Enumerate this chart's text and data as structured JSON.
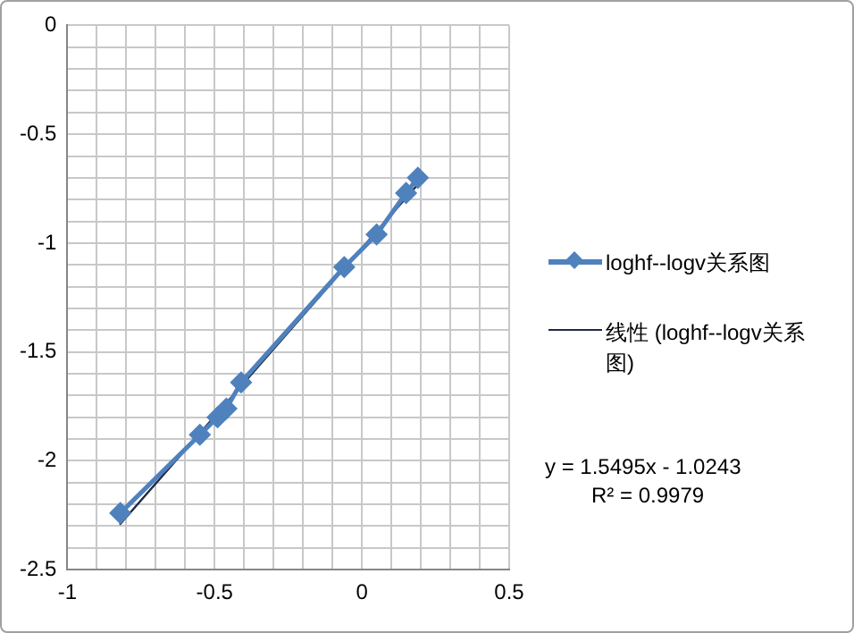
{
  "chart_data": {
    "type": "line",
    "legend": "right",
    "grid": true,
    "marker": "diamond",
    "xlim": [
      -1,
      0.5
    ],
    "ylim": [
      -2.5,
      0
    ],
    "xticks": [
      -1,
      {
        "value": -0.9,
        "label": null
      },
      {
        "value": -0.8,
        "label": null
      },
      {
        "value": -0.7,
        "label": null
      },
      {
        "value": -0.6,
        "label": null
      },
      -0.5,
      {
        "value": -0.4,
        "label": null
      },
      {
        "value": -0.3,
        "label": null
      },
      {
        "value": -0.2,
        "label": null
      },
      {
        "value": -0.1,
        "label": null
      },
      0,
      {
        "value": 0.1,
        "label": null
      },
      {
        "value": 0.2,
        "label": null
      },
      {
        "value": 0.3,
        "label": null
      },
      {
        "value": 0.4,
        "label": null
      },
      0.5
    ],
    "yticks": [
      -2.5,
      {
        "value": -2.4,
        "label": null
      },
      {
        "value": -2.3,
        "label": null
      },
      {
        "value": -2.2,
        "label": null
      },
      {
        "value": -2.1,
        "label": null
      },
      -2,
      {
        "value": -1.9,
        "label": null
      },
      {
        "value": -1.8,
        "label": null
      },
      {
        "value": -1.7,
        "label": null
      },
      {
        "value": -1.6,
        "label": null
      },
      -1.5,
      {
        "value": -1.4,
        "label": null
      },
      {
        "value": -1.3,
        "label": null
      },
      {
        "value": -1.2,
        "label": null
      },
      {
        "value": -1.1,
        "label": null
      },
      -1,
      {
        "value": -0.9,
        "label": null
      },
      {
        "value": -0.8,
        "label": null
      },
      {
        "value": -0.7,
        "label": null
      },
      {
        "value": -0.6,
        "label": null
      },
      -0.5,
      {
        "value": -0.4,
        "label": null
      },
      {
        "value": -0.3,
        "label": null
      },
      {
        "value": -0.2,
        "label": null
      },
      {
        "value": -0.1,
        "label": null
      },
      0
    ],
    "series": [
      {
        "name": "loghf--logv关系图",
        "color": "#4f81bd",
        "x": [
          -0.82,
          -0.55,
          -0.49,
          -0.46,
          -0.41,
          -0.06,
          0.05,
          0.15,
          0.19
        ],
        "values": [
          -2.24,
          -1.88,
          -1.8,
          -1.76,
          -1.64,
          -1.11,
          -0.96,
          -0.77,
          -0.7
        ]
      },
      {
        "name": "线性 (loghf--logv关系图)",
        "color": "#1f2a44",
        "marker": "none",
        "x": [
          -0.82,
          0.19
        ],
        "values": [
          -2.29,
          -0.73
        ]
      }
    ],
    "annotations": [
      "y = 1.5495x - 1.0243",
      "R² = 0.9979"
    ]
  }
}
